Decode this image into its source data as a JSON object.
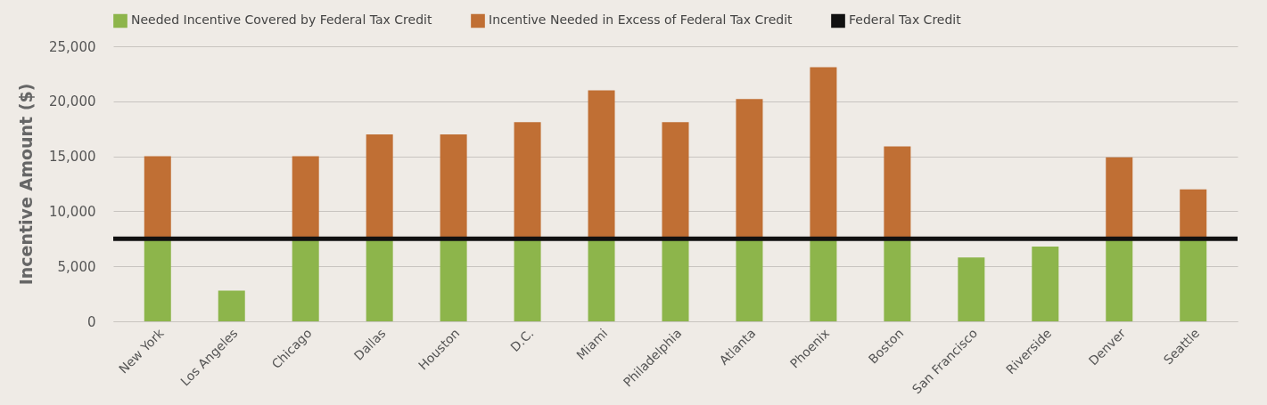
{
  "chart_data": {
    "type": "bar",
    "stacked": true,
    "ylabel": "Incentive Amount ($)",
    "categories": [
      "New York",
      "Los Angeles",
      "Chicago",
      "Dallas",
      "Houston",
      "D.C.",
      "Miami",
      "Philadelphia",
      "Atlanta",
      "Phoenix",
      "Boston",
      "San Francisco",
      "Riverside",
      "Denver",
      "Seattle"
    ],
    "series": [
      {
        "name": "Needed Incentive Covered by Federal Tax Credit",
        "color": "#8db54b",
        "values": [
          7500,
          2800,
          7500,
          7500,
          7500,
          7500,
          7500,
          7500,
          7500,
          7500,
          7500,
          5800,
          6800,
          7500,
          7500
        ]
      },
      {
        "name": "Incentive Needed in Excess of Federal Tax Credit",
        "color": "#c06f34",
        "values": [
          7500,
          0,
          7500,
          9500,
          9500,
          10600,
          13500,
          10600,
          12700,
          15600,
          8400,
          0,
          0,
          7400,
          4500
        ]
      }
    ],
    "ref_lines": [
      {
        "axis": "y",
        "value": 7500,
        "label": "Federal Tax Credit",
        "color": "#111111",
        "line_style": "solid"
      }
    ],
    "ylim": [
      0,
      25000
    ],
    "yticks": [
      0,
      {
        "value": 5000,
        "label": "5,000"
      },
      {
        "value": 10000,
        "label": "10,000"
      },
      {
        "value": 15000,
        "label": "15,000"
      },
      {
        "value": 20000,
        "label": "20,000"
      },
      {
        "value": 25000,
        "label": "25,000"
      }
    ],
    "grid": "y",
    "legend": "top"
  }
}
